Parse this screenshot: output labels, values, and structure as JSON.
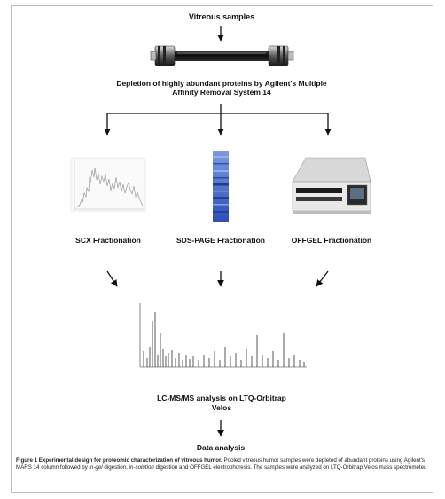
{
  "steps": {
    "vitreous": "Vitreous samples",
    "depletion": "Depletion of highly abundant proteins by Agilent's Multiple Affinity Removal System 14",
    "scx": "SCX Fractionation",
    "sds": "SDS-PAGE Fractionation",
    "offgel": "OFFGEL Fractionation",
    "lcms": "LC-MS/MS analysis on LTQ-Orbitrap Velos",
    "data": "Data analysis"
  },
  "caption": {
    "lead": "Figure 1 Experimental design for proteomic characterization of vitreous humor.",
    "part1": " Pooled vitreous humor samples were depleted of abundant proteins using Agilent's MARS 14 column followed by ",
    "italic1": "in-gel",
    "part2": " digestion, ",
    "italic2": "in-solution",
    "part3": " digestion and OFFGEL electrophoresis. The samples were analyzed on LTQ-Orbitrap Velos mass spectrometer."
  },
  "icons": {
    "column": "affinity-column-icon",
    "chromatogram": "chromatogram-icon",
    "gel": "gel-lane-icon",
    "offgel": "offgel-instrument-icon",
    "spectrum": "mass-spectrum-icon"
  },
  "colors": {
    "arrow": "#111111",
    "gel": "#3b5fc0",
    "frame": "#bdbdbd"
  }
}
